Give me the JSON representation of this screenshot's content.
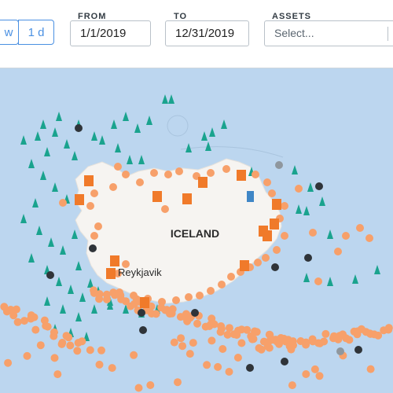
{
  "toolbar": {
    "range_buttons": [
      {
        "label": "w"
      },
      {
        "label": "1 d"
      }
    ],
    "from": {
      "label": "FROM",
      "value": "1/1/2019"
    },
    "to": {
      "label": "TO",
      "value": "12/31/2019"
    },
    "assets": {
      "label": "ASSETS",
      "placeholder": "Select..."
    }
  },
  "map": {
    "country_label": "ICELAND",
    "city_label": "Reykjavik",
    "colors": {
      "water": "#bcd6ef",
      "land": "#f6f4f1",
      "orange": "#f7a06a",
      "orange_square": "#f07a2a",
      "teal": "#1aa38e",
      "dark": "#2f3439",
      "gray": "#8f979e",
      "blue_marker": "#3f86c6"
    }
  }
}
